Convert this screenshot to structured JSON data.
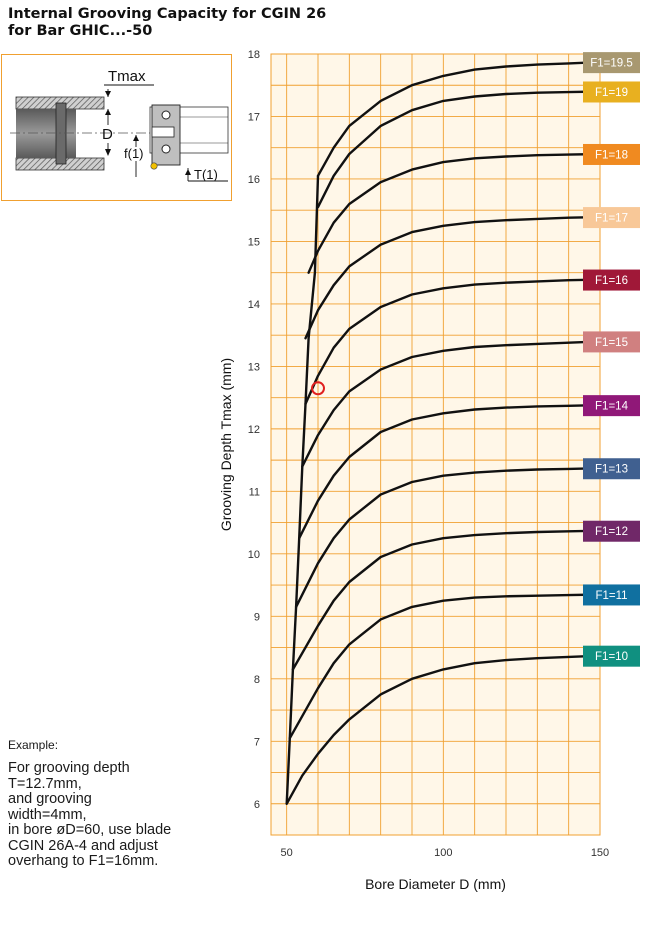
{
  "page": {
    "title_line1": "Internal Grooving Capacity for CGIN 26",
    "title_line2": "for Bar GHIC...-50"
  },
  "diagram": {
    "tmax_label": "Tmax",
    "d_label": "D",
    "f_label": "f(1)",
    "t_label": "T(1)"
  },
  "example": {
    "heading": "Example:",
    "text": "For grooving depth\nT=12.7mm,\nand grooving\nwidth=4mm,\nin bore øD=60, use blade\nCGIN 26A-4 and adjust\noverhang to F1=16mm."
  },
  "chart_data": {
    "type": "line",
    "xlabel": "Bore Diameter D (mm)",
    "ylabel": "Grooving Depth Tmax (mm)",
    "xlim": [
      45,
      150
    ],
    "ylim": [
      5.5,
      18
    ],
    "x_ticks": [
      50,
      100,
      150
    ],
    "y_ticks": [
      6,
      7,
      8,
      9,
      10,
      11,
      12,
      13,
      14,
      15,
      16,
      17,
      18
    ],
    "grid": true,
    "plot_background": "#fff7e8",
    "grid_color": "#f0a030",
    "envelope": {
      "x": [
        50,
        51,
        52,
        53,
        54,
        55,
        56,
        57,
        59,
        60
      ],
      "y": [
        6.0,
        7.05,
        8.15,
        9.15,
        10.25,
        11.4,
        12.4,
        13.45,
        14.5,
        16.05
      ]
    },
    "series": [
      {
        "name": "F1=19.5",
        "color": "#a89870",
        "x": [
          60,
          65,
          70,
          80,
          90,
          100,
          110,
          120,
          130,
          140,
          150
        ],
        "y": [
          16.05,
          16.5,
          16.85,
          17.25,
          17.5,
          17.65,
          17.75,
          17.8,
          17.83,
          17.85,
          17.87
        ]
      },
      {
        "name": "F1=19",
        "color": "#e8b020",
        "x": [
          60,
          65,
          70,
          80,
          90,
          100,
          110,
          120,
          130,
          140,
          150
        ],
        "y": [
          15.55,
          16.05,
          16.4,
          16.85,
          17.1,
          17.25,
          17.32,
          17.36,
          17.38,
          17.39,
          17.4
        ]
      },
      {
        "name": "F1=18",
        "color": "#f08a20",
        "x": [
          57,
          60,
          65,
          70,
          80,
          90,
          100,
          110,
          120,
          130,
          140,
          150
        ],
        "y": [
          14.5,
          14.85,
          15.3,
          15.6,
          15.95,
          16.15,
          16.27,
          16.33,
          16.36,
          16.38,
          16.39,
          16.4
        ]
      },
      {
        "name": "F1=17",
        "color": "#f8c898",
        "x": [
          56,
          60,
          65,
          70,
          80,
          90,
          100,
          110,
          120,
          130,
          140,
          150
        ],
        "y": [
          13.45,
          13.9,
          14.3,
          14.6,
          14.95,
          15.15,
          15.25,
          15.31,
          15.34,
          15.36,
          15.38,
          15.39
        ]
      },
      {
        "name": "F1=16",
        "color": "#a01838",
        "x": [
          56,
          60,
          65,
          70,
          80,
          90,
          100,
          110,
          120,
          130,
          140,
          150
        ],
        "y": [
          12.4,
          12.85,
          13.3,
          13.6,
          13.95,
          14.15,
          14.25,
          14.31,
          14.34,
          14.36,
          14.38,
          14.39
        ]
      },
      {
        "name": "F1=15",
        "color": "#d08080",
        "x": [
          55,
          60,
          65,
          70,
          80,
          90,
          100,
          110,
          120,
          130,
          140,
          150
        ],
        "y": [
          11.4,
          11.9,
          12.3,
          12.6,
          12.95,
          13.15,
          13.25,
          13.31,
          13.34,
          13.36,
          13.38,
          13.4
        ]
      },
      {
        "name": "F1=14",
        "color": "#901878",
        "x": [
          54,
          60,
          65,
          70,
          80,
          90,
          100,
          110,
          120,
          130,
          140,
          150
        ],
        "y": [
          10.25,
          10.85,
          11.25,
          11.55,
          11.95,
          12.15,
          12.25,
          12.31,
          12.34,
          12.36,
          12.37,
          12.38
        ]
      },
      {
        "name": "F1=13",
        "color": "#406090",
        "x": [
          53,
          60,
          65,
          70,
          80,
          90,
          100,
          110,
          120,
          130,
          140,
          150
        ],
        "y": [
          9.15,
          9.85,
          10.25,
          10.55,
          10.95,
          11.15,
          11.25,
          11.3,
          11.33,
          11.35,
          11.36,
          11.37
        ]
      },
      {
        "name": "F1=12",
        "color": "#702868",
        "x": [
          52,
          60,
          65,
          70,
          80,
          90,
          100,
          110,
          120,
          130,
          140,
          150
        ],
        "y": [
          8.15,
          8.85,
          9.25,
          9.55,
          9.95,
          10.15,
          10.25,
          10.3,
          10.33,
          10.35,
          10.36,
          10.37
        ]
      },
      {
        "name": "F1=11",
        "color": "#1070a0",
        "x": [
          51,
          60,
          65,
          70,
          80,
          90,
          100,
          110,
          120,
          130,
          140,
          150
        ],
        "y": [
          7.05,
          7.85,
          8.25,
          8.55,
          8.95,
          9.15,
          9.25,
          9.3,
          9.32,
          9.33,
          9.34,
          9.35
        ]
      },
      {
        "name": "F1=10",
        "color": "#109080",
        "x": [
          50,
          55,
          60,
          65,
          70,
          80,
          90,
          100,
          110,
          120,
          130,
          140,
          150
        ],
        "y": [
          6.0,
          6.45,
          6.8,
          7.1,
          7.35,
          7.75,
          8.0,
          8.15,
          8.25,
          8.3,
          8.33,
          8.35,
          8.37
        ]
      }
    ],
    "marker": {
      "x": 60,
      "y": 12.65,
      "color": "#e02020"
    }
  }
}
